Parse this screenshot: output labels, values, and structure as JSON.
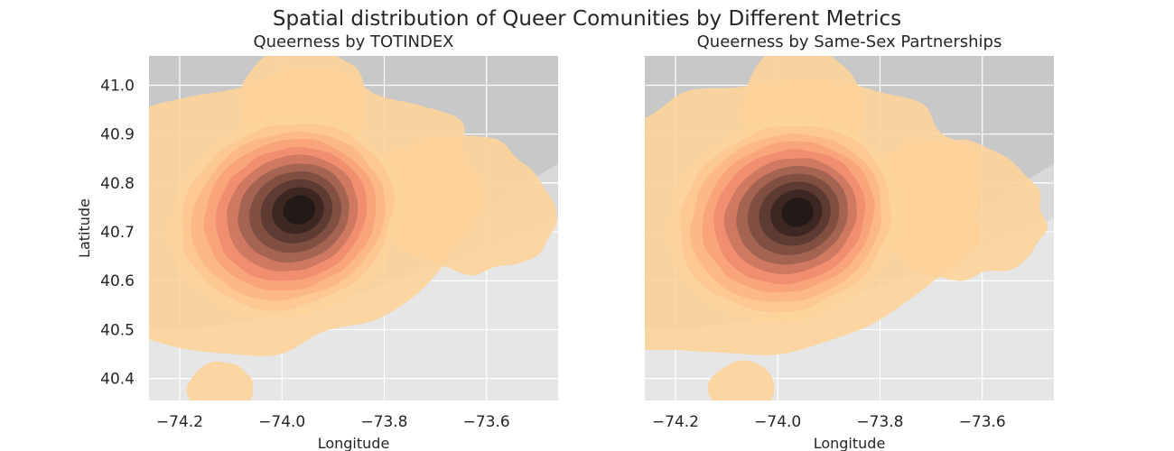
{
  "title": "Spatial distribution of Queer Comunities by Different Metrics",
  "colors": {
    "basemap": "#d9d9d9",
    "land": "#c8c8c8",
    "water": "#e6e6e6",
    "grid": "#ffffff",
    "outer": "#fdd39a",
    "kde_ramp": [
      "#fdd49b",
      "#fdc692",
      "#fcb587",
      "#f9a07a",
      "#ee8b6d",
      "#c97560",
      "#9d5f4f",
      "#7a4b3f",
      "#58372f",
      "#382520",
      "#1e1714"
    ]
  },
  "chart_data": [
    {
      "type": "kde-contour-map",
      "title": "Queerness by TOTINDEX",
      "xlabel": "Longitude",
      "ylabel": "Latitude",
      "xlim": [
        -74.26,
        -73.46
      ],
      "ylim": [
        40.355,
        41.06
      ],
      "xticks": [
        -74.2,
        -74.0,
        -73.8,
        -73.6
      ],
      "yticks": [
        40.4,
        40.5,
        40.6,
        40.7,
        40.8,
        40.9,
        41.0
      ],
      "xtick_labels": [
        "−74.2",
        "−74.0",
        "−73.8",
        "−73.6"
      ],
      "ytick_labels": [
        "40.4",
        "40.5",
        "40.6",
        "40.7",
        "40.8",
        "40.9",
        "41.0"
      ],
      "grid": true,
      "peak": {
        "lon": -73.975,
        "lat": 40.745
      },
      "secondary_region": {
        "lon": -73.65,
        "lat": 40.74
      },
      "isolated_cluster": {
        "lon": -74.12,
        "lat": 40.39
      },
      "levels": 11
    },
    {
      "type": "kde-contour-map",
      "title": "Queerness by Same-Sex Partnerships",
      "xlabel": "Longitude",
      "ylabel": "",
      "xlim": [
        -74.26,
        -73.46
      ],
      "ylim": [
        40.355,
        41.06
      ],
      "xticks": [
        -74.2,
        -74.0,
        -73.8,
        -73.6
      ],
      "yticks": [
        40.4,
        40.5,
        40.6,
        40.7,
        40.8,
        40.9,
        41.0
      ],
      "xtick_labels": [
        "−74.2",
        "−74.0",
        "−73.8",
        "−73.6"
      ],
      "ytick_labels": [],
      "grid": true,
      "peak": {
        "lon": -73.97,
        "lat": 40.74
      },
      "secondary_region": {
        "lon": -73.66,
        "lat": 40.73
      },
      "isolated_cluster": {
        "lon": -74.07,
        "lat": 40.39
      },
      "levels": 11
    }
  ]
}
